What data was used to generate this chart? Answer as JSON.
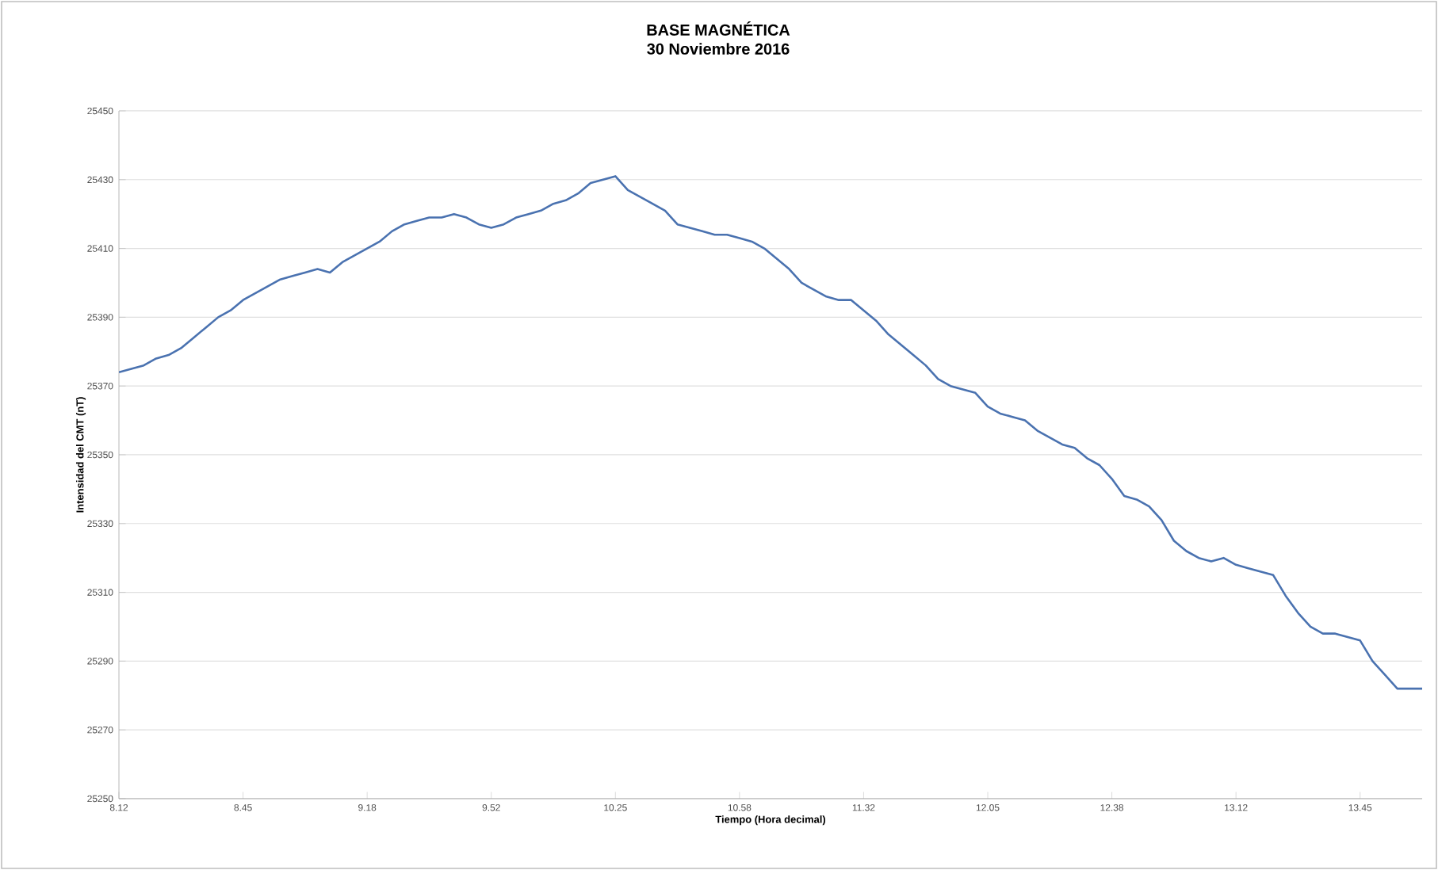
{
  "chart_data": {
    "type": "line",
    "title": "BASE MAGNÉTICA",
    "subtitle": "30 Noviembre 2016",
    "xlabel": "Tiempo (Hora decimal)",
    "ylabel": "Intensidad del CMT (nT)",
    "categories": [
      "8.12",
      null,
      null,
      null,
      null,
      null,
      null,
      null,
      null,
      null,
      "8.45",
      null,
      null,
      null,
      null,
      null,
      null,
      null,
      null,
      null,
      "9.18",
      null,
      null,
      null,
      null,
      null,
      null,
      null,
      null,
      null,
      "9.52",
      null,
      null,
      null,
      null,
      null,
      null,
      null,
      null,
      null,
      "10.25",
      null,
      null,
      null,
      null,
      null,
      null,
      null,
      null,
      null,
      "10.58",
      null,
      null,
      null,
      null,
      null,
      null,
      null,
      null,
      null,
      "11.32",
      null,
      null,
      null,
      null,
      null,
      null,
      null,
      null,
      null,
      "12.05",
      null,
      null,
      null,
      null,
      null,
      null,
      null,
      null,
      null,
      "12.38",
      null,
      null,
      null,
      null,
      null,
      null,
      null,
      null,
      null,
      "13.12",
      null,
      null,
      null,
      null,
      null,
      null,
      null,
      null,
      null,
      "13.45",
      null,
      null,
      null,
      null,
      null
    ],
    "series": [
      {
        "color": "#4a72b0",
        "values": [
          25374,
          25375,
          25376,
          25378,
          25379,
          25381,
          25384,
          25387,
          25390,
          25392,
          25395,
          25397,
          25399,
          25401,
          25402,
          25403,
          25404,
          25403,
          25406,
          25408,
          25410,
          25412,
          25415,
          25417,
          25418,
          25419,
          25419,
          25420,
          25419,
          25417,
          25416,
          25417,
          25419,
          25420,
          25421,
          25423,
          25424,
          25426,
          25429,
          25430,
          25431,
          25427,
          25425,
          25423,
          25421,
          25417,
          25416,
          25415,
          25414,
          25414,
          25413,
          25412,
          25410,
          25407,
          25404,
          25400,
          25398,
          25396,
          25395,
          25395,
          25392,
          25389,
          25385,
          25382,
          25379,
          25376,
          25372,
          25370,
          25369,
          25368,
          25364,
          25362,
          25361,
          25360,
          25357,
          25355,
          25353,
          25352,
          25349,
          25347,
          25343,
          25338,
          25337,
          25335,
          25331,
          25325,
          25322,
          25320,
          25319,
          25320,
          25318,
          25317,
          25316,
          25315,
          25309,
          25304,
          25300,
          25298,
          25298,
          25297,
          25296,
          25290,
          25286,
          25282,
          25282,
          25282
        ]
      }
    ],
    "ylim": [
      25250,
      25450
    ],
    "yticks": [
      25250,
      25270,
      25290,
      25310,
      25330,
      25350,
      25370,
      25390,
      25410,
      25430,
      25450
    ],
    "grid": "y",
    "marker": "none",
    "line_style": "solid"
  }
}
